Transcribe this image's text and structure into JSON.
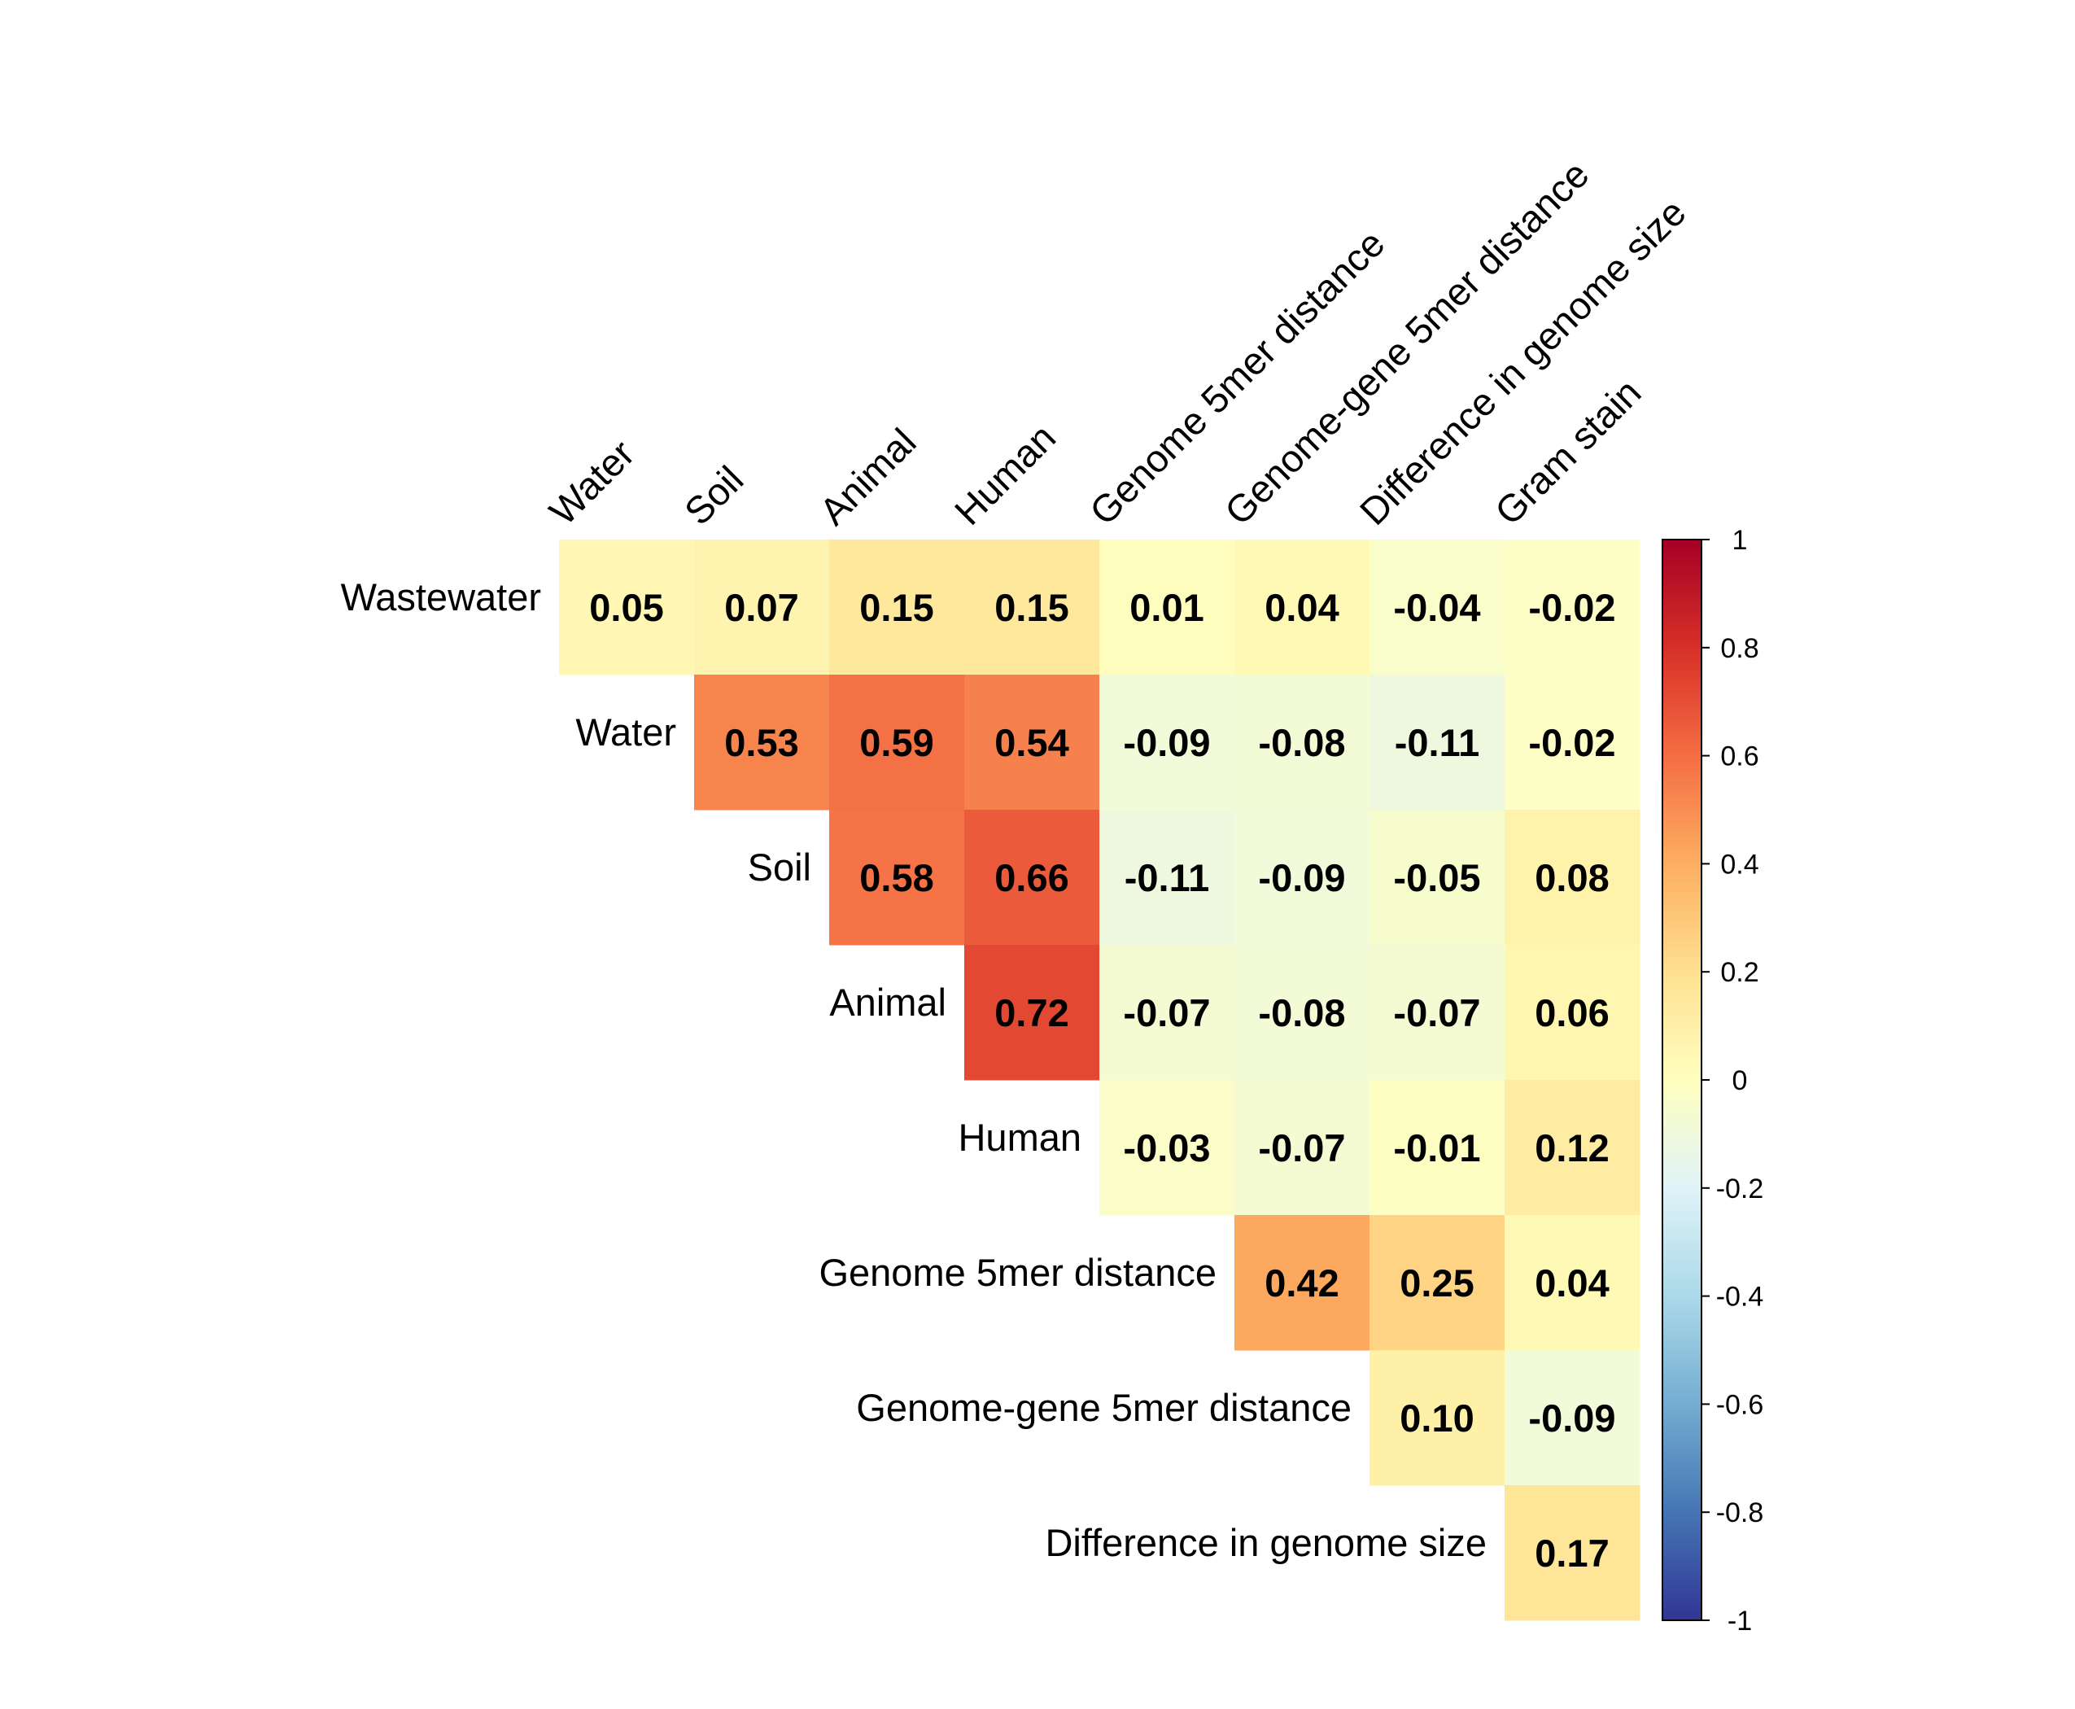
{
  "chart_data": {
    "type": "heatmap",
    "title": "",
    "columns": [
      "Water",
      "Soil",
      "Animal",
      "Human",
      "Genome 5mer distance",
      "Genome-gene 5mer distance",
      "Difference in genome size",
      "Gram stain"
    ],
    "rows": [
      "Wastewater",
      "Water",
      "Soil",
      "Animal",
      "Human",
      "Genome 5mer distance",
      "Genome-gene 5mer distance",
      "Difference in genome size"
    ],
    "values": [
      [
        0.05,
        0.07,
        0.15,
        0.15,
        0.01,
        0.04,
        -0.04,
        -0.02
      ],
      [
        null,
        0.53,
        0.59,
        0.54,
        -0.09,
        -0.08,
        -0.11,
        -0.02
      ],
      [
        null,
        null,
        0.58,
        0.66,
        -0.11,
        -0.09,
        -0.05,
        0.08
      ],
      [
        null,
        null,
        null,
        0.72,
        -0.07,
        -0.08,
        -0.07,
        0.06
      ],
      [
        null,
        null,
        null,
        null,
        -0.03,
        -0.07,
        -0.01,
        0.12
      ],
      [
        null,
        null,
        null,
        null,
        null,
        0.42,
        0.25,
        0.04
      ],
      [
        null,
        null,
        null,
        null,
        null,
        null,
        0.1,
        -0.09
      ],
      [
        null,
        null,
        null,
        null,
        null,
        null,
        null,
        0.17
      ]
    ],
    "labels": [
      [
        "0.05",
        "0.07",
        "0.15",
        "0.15",
        "0.01",
        "0.04",
        "-0.04",
        "-0.02"
      ],
      [
        null,
        "0.53",
        "0.59",
        "0.54",
        "-0.09",
        "-0.08",
        "-0.11",
        "-0.02"
      ],
      [
        null,
        null,
        "0.58",
        "0.66",
        "-0.11",
        "-0.09",
        "-0.05",
        "0.08"
      ],
      [
        null,
        null,
        null,
        "0.72",
        "-0.07",
        "-0.08",
        "-0.07",
        "0.06"
      ],
      [
        null,
        null,
        null,
        null,
        "-0.03",
        "-0.07",
        "-0.01",
        "0.12"
      ],
      [
        null,
        null,
        null,
        null,
        null,
        "0.42",
        "0.25",
        "0.04"
      ],
      [
        null,
        null,
        null,
        null,
        null,
        null,
        "0.10",
        "-0.09"
      ],
      [
        null,
        null,
        null,
        null,
        null,
        null,
        null,
        "0.17"
      ]
    ],
    "color_scale": {
      "range": [
        -1,
        1
      ],
      "ticks": [
        "1",
        "0.8",
        "0.6",
        "0.4",
        "0.2",
        "0",
        "-0.2",
        "-0.4",
        "-0.6",
        "-0.8",
        "-1"
      ],
      "palette": [
        "#313695",
        "#4575b4",
        "#74add1",
        "#abd9e9",
        "#e0f3f8",
        "#ffffbf",
        "#fee090",
        "#fdae61",
        "#f46d43",
        "#d73027",
        "#a50026"
      ],
      "colorbar_position": "right"
    },
    "grid": false,
    "legend": "colorbar right"
  }
}
